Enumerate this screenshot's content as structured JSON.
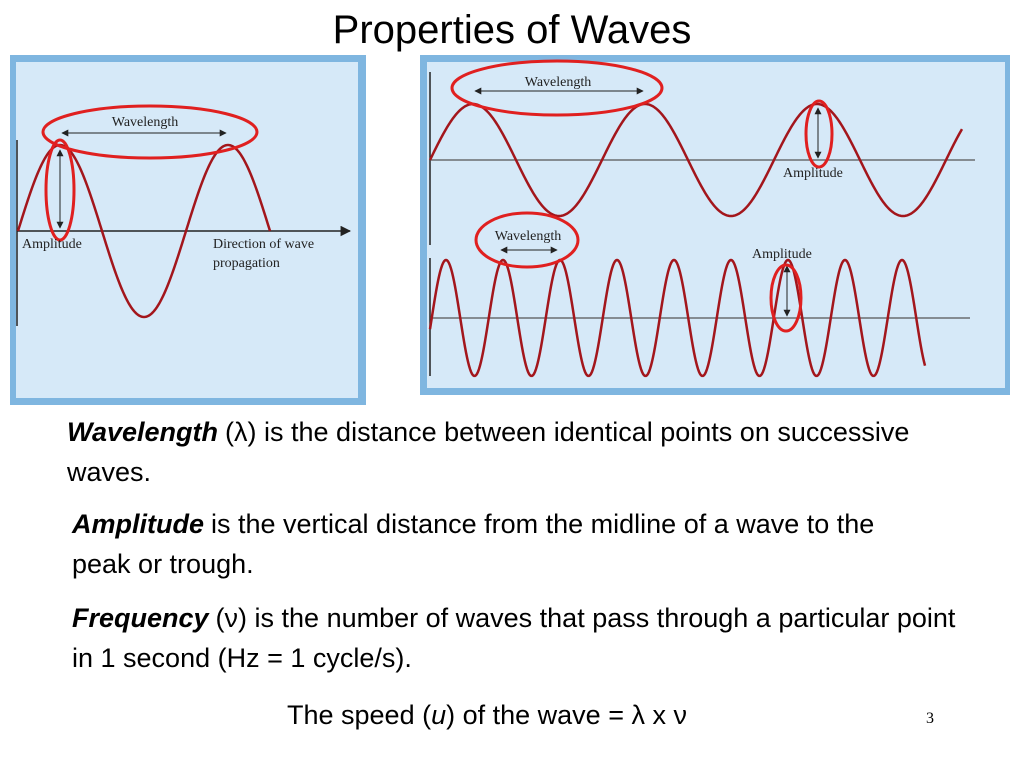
{
  "title": "Properties of Waves",
  "figure_left": {
    "wavelength": "Wavelength",
    "amplitude": "Amplitude",
    "direction": [
      "Direction of wave",
      "propagation"
    ]
  },
  "figure_right": {
    "top_wavelength": "Wavelength",
    "top_amplitude": "Amplitude",
    "bottom_wavelength": "Wavelength",
    "bottom_amplitude": "Amplitude"
  },
  "definitions": [
    {
      "term": "Wavelength",
      "text": "(λ) is the distance between identical points on successive waves."
    },
    {
      "term": "Amplitude",
      "text": "is the vertical distance from the midline of a wave to the peak or trough."
    },
    {
      "term": "Frequency",
      "text": "(ν) is the number of waves that pass through a particular point in 1 second (Hz = 1 cycle/s)."
    }
  ],
  "speed": {
    "prefix": "The speed (",
    "symbol": "u",
    "suffix": ") of the wave = λ x ν"
  },
  "page_number": "3"
}
